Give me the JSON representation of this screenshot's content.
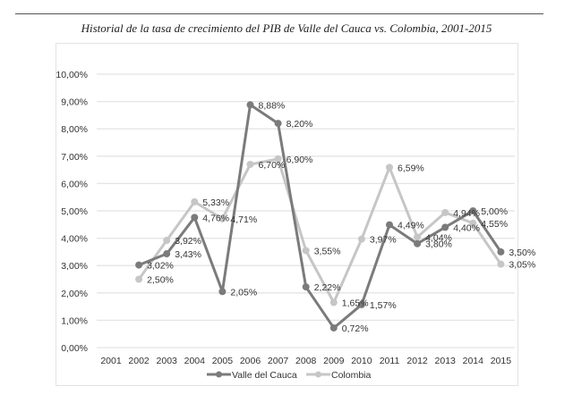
{
  "caption": "Historial de la tasa de crecimiento del PIB de Valle del Cauca vs. Colombia, 2001-2015",
  "chart_data": {
    "type": "line",
    "title": "Historial de la tasa de crecimiento del PIB de Valle del Cauca vs. Colombia, 2001-2015",
    "xlabel": "",
    "ylabel": "",
    "x": [
      "2001",
      "2002",
      "2003",
      "2004",
      "2005",
      "2006",
      "2007",
      "2008",
      "2009",
      "2010",
      "2011",
      "2012",
      "2013",
      "2014",
      "2015"
    ],
    "ylim": [
      0,
      10
    ],
    "yticks": [
      "0,00%",
      "1,00%",
      "2,00%",
      "3,00%",
      "4,00%",
      "5,00%",
      "6,00%",
      "7,00%",
      "8,00%",
      "9,00%",
      "10,00%"
    ],
    "grid": true,
    "legend_position": "bottom",
    "series": [
      {
        "name": "Valle del Cauca",
        "color": "#7b7b7b",
        "values": [
          null,
          3.02,
          3.43,
          4.76,
          2.05,
          8.88,
          8.2,
          2.22,
          0.72,
          1.57,
          4.49,
          3.8,
          4.4,
          5.0,
          3.5
        ],
        "labels": [
          null,
          "3,02%",
          "3,43%",
          "4,76%",
          "2,05%",
          "8,88%",
          "8,20%",
          "2,22%",
          "0,72%",
          "1,57%",
          "4,49%",
          "3,80%",
          "4,40%",
          "5,00%",
          "3,50%"
        ]
      },
      {
        "name": "Colombia",
        "color": "#c6c6c6",
        "values": [
          null,
          2.5,
          3.92,
          5.33,
          4.71,
          6.7,
          6.9,
          3.55,
          1.65,
          3.97,
          6.59,
          4.04,
          4.94,
          4.55,
          3.05
        ],
        "labels": [
          null,
          "2,50%",
          "3,92%",
          "5,33%",
          "4,71%",
          "6,70%",
          "6,90%",
          "3,55%",
          "1,65%",
          "3,97%",
          "6,59%",
          "4,04%",
          "4,94%",
          "4,55%",
          "3,05%"
        ]
      }
    ]
  }
}
